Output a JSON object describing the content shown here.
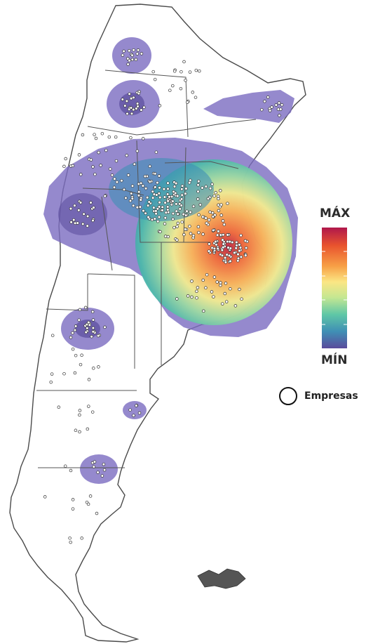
{
  "legend": {
    "max_label": "MÁX",
    "min_label": "MÍN",
    "points_label": "Empresas"
  },
  "colors": {
    "scale": [
      "#5a4b9c",
      "#3f8fb5",
      "#5fc7a6",
      "#c4e792",
      "#fbe684",
      "#f7a046",
      "#e9542e",
      "#b0174b"
    ],
    "halo": "#7b6cc1",
    "outline": "#4a4a4a"
  }
}
